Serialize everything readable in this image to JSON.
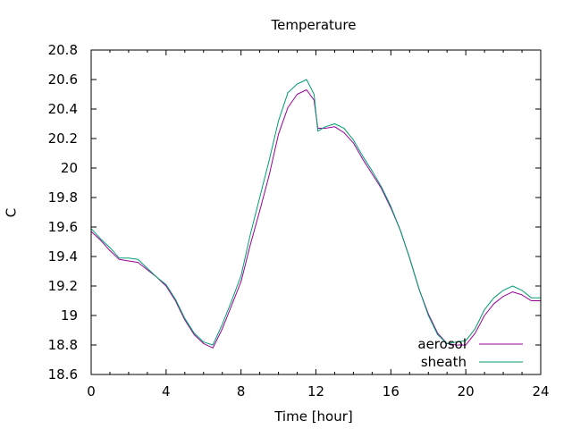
{
  "chart_data": {
    "type": "line",
    "title": "Temperature",
    "xlabel": "Time [hour]",
    "ylabel": "C",
    "xlim": [
      0,
      24
    ],
    "ylim": [
      18.6,
      20.8
    ],
    "xticks": [
      0,
      4,
      8,
      12,
      16,
      20,
      24
    ],
    "xtick_labels": [
      "0",
      "4",
      "8",
      "12",
      "16",
      "20",
      "24"
    ],
    "yticks": [
      18.6,
      18.8,
      19.0,
      19.2,
      19.4,
      19.6,
      19.8,
      20.0,
      20.2,
      20.4,
      20.6,
      20.8
    ],
    "ytick_labels": [
      "18.6",
      "18.8",
      "19",
      "19.2",
      "19.4",
      "19.6",
      "19.8",
      "20",
      "20.2",
      "20.4",
      "20.6",
      "20.8"
    ],
    "grid": false,
    "legend_position": "bottom-right",
    "x": [
      0,
      0.5,
      1,
      1.5,
      2,
      2.5,
      3,
      3.5,
      4,
      4.5,
      5,
      5.5,
      6,
      6.5,
      7,
      7.5,
      8,
      8.5,
      9,
      9.5,
      10,
      10.5,
      11,
      11.5,
      11.9,
      12.1,
      12.5,
      13,
      13.5,
      14,
      14.5,
      15,
      15.5,
      16,
      16.5,
      17,
      17.5,
      18,
      18.5,
      19,
      19.5,
      20,
      20.5,
      21,
      21.5,
      22,
      22.5,
      23,
      23.5,
      24
    ],
    "series": [
      {
        "name": "aerosol",
        "color": "#990099",
        "values": [
          19.57,
          19.51,
          19.44,
          19.38,
          19.37,
          19.36,
          19.31,
          19.26,
          19.2,
          19.1,
          18.97,
          18.87,
          18.81,
          18.78,
          18.91,
          19.07,
          19.23,
          19.48,
          19.71,
          19.95,
          20.23,
          20.41,
          20.5,
          20.53,
          20.46,
          20.27,
          20.27,
          20.28,
          20.24,
          20.17,
          20.06,
          19.96,
          19.86,
          19.73,
          19.58,
          19.39,
          19.18,
          19.01,
          18.88,
          18.81,
          18.8,
          18.8,
          18.88,
          19.0,
          19.08,
          19.13,
          19.16,
          19.14,
          19.1,
          19.1
        ]
      },
      {
        "name": "sheath",
        "color": "#009e73",
        "values": [
          19.59,
          19.52,
          19.46,
          19.39,
          19.39,
          19.38,
          19.32,
          19.26,
          19.21,
          19.11,
          18.98,
          18.88,
          18.82,
          18.8,
          18.94,
          19.1,
          19.27,
          19.55,
          19.8,
          20.05,
          20.32,
          20.51,
          20.57,
          20.6,
          20.5,
          20.25,
          20.28,
          20.3,
          20.27,
          20.19,
          20.08,
          19.98,
          19.87,
          19.74,
          19.58,
          19.39,
          19.18,
          19.0,
          18.87,
          18.81,
          18.82,
          18.83,
          18.91,
          19.04,
          19.12,
          19.17,
          19.2,
          19.17,
          19.12,
          19.12
        ]
      }
    ]
  }
}
